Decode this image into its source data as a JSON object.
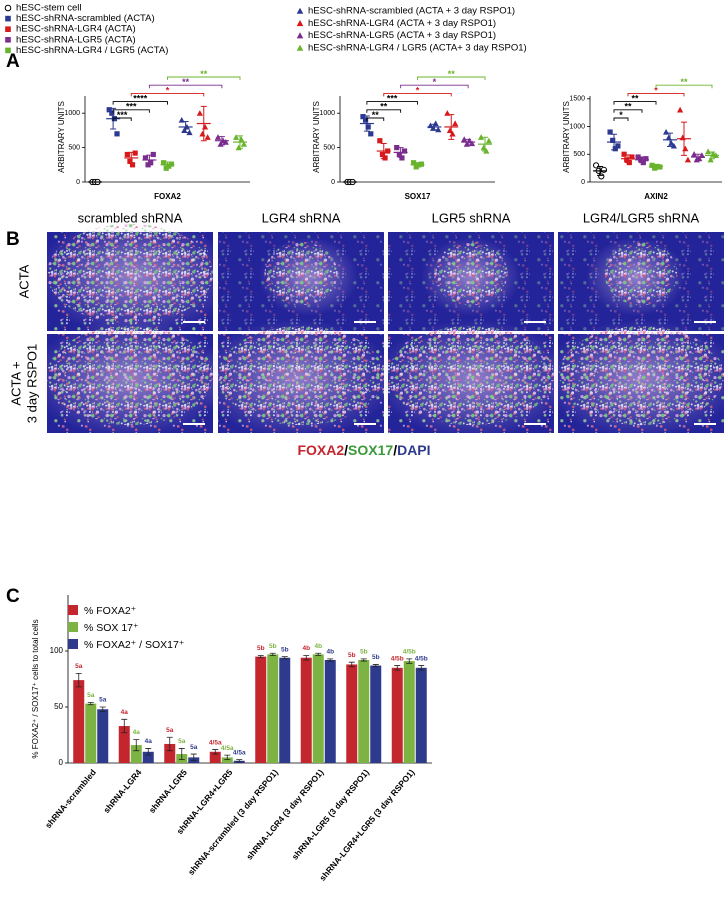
{
  "panel_labels": [
    "A",
    "B",
    "C"
  ],
  "legend": [
    {
      "name": "hESC-stem cell",
      "color": "#000000",
      "marker": "open-circle"
    },
    {
      "name": "hESC-shRNA-scrambled (ACTA)",
      "color": "#2b3990",
      "marker": "square"
    },
    {
      "name": "hESC-shRNA-LGR4 (ACTA)",
      "color": "#d7191c",
      "marker": "square"
    },
    {
      "name": "hESC-shRNA-LGR5 (ACTA)",
      "color": "#7b2d8e",
      "marker": "square"
    },
    {
      "name": "hESC-shRNA-LGR4 / LGR5 (ACTA)",
      "color": "#6ab42d",
      "marker": "square"
    },
    {
      "name": "hESC-shRNA-scrambled (ACTA + 3 day RSPO1)",
      "color": "#2b3990",
      "marker": "triangle"
    },
    {
      "name": "hESC-shRNA-LGR4 (ACTA + 3 day RSPO1)",
      "color": "#d7191c",
      "marker": "triangle"
    },
    {
      "name": "hESC-shRNA-LGR5 (ACTA + 3 day RSPO1)",
      "color": "#7b2d8e",
      "marker": "triangle"
    },
    {
      "name": "hESC-shRNA-LGR4 / LGR5 (ACTA+ 3 day RSPO1)",
      "color": "#6ab42d",
      "marker": "triangle"
    }
  ],
  "chart_data": [
    {
      "type": "dotplot",
      "ylabel": "ARBITRARY UNITS",
      "xlabel": "FOXA2",
      "ylim": [
        0,
        1250
      ],
      "yticks": [
        0,
        500,
        1000
      ],
      "groups": [
        {
          "values": [
            0,
            0,
            0
          ],
          "mean": 0,
          "sd": 0
        },
        {
          "values": [
            1050,
            1000,
            920,
            700
          ],
          "mean": 920,
          "sd": 150
        },
        {
          "values": [
            400,
            300,
            250,
            420
          ],
          "mean": 350,
          "sd": 80
        },
        {
          "values": [
            350,
            250,
            280,
            400
          ],
          "mean": 320,
          "sd": 70
        },
        {
          "values": [
            280,
            200,
            230,
            260
          ],
          "mean": 250,
          "sd": 40
        },
        {
          "values": [
            900,
            750,
            800,
            720
          ],
          "mean": 800,
          "sd": 80
        },
        {
          "values": [
            1000,
            700,
            800,
            650
          ],
          "mean": 850,
          "sd": 250
        },
        {
          "values": [
            650,
            550,
            600,
            580
          ],
          "mean": 600,
          "sd": 60
        },
        {
          "values": [
            650,
            500,
            620,
            550
          ],
          "mean": 580,
          "sd": 90
        }
      ],
      "brackets": [
        {
          "between": [
            1,
            2
          ],
          "label": "***",
          "color": "#000000"
        },
        {
          "between": [
            1,
            3
          ],
          "label": "***",
          "color": "#000000"
        },
        {
          "between": [
            1,
            4
          ],
          "label": "****",
          "color": "#000000"
        },
        {
          "between": [
            2,
            6
          ],
          "label": "*",
          "color": "#d7191c"
        },
        {
          "between": [
            3,
            7
          ],
          "label": "**",
          "color": "#7b2d8e"
        },
        {
          "between": [
            4,
            8
          ],
          "label": "**",
          "color": "#6ab42d"
        }
      ]
    },
    {
      "type": "dotplot",
      "ylabel": "ARBITRARY UNITS",
      "xlabel": "SOX17",
      "ylim": [
        0,
        1250
      ],
      "yticks": [
        0,
        500,
        1000
      ],
      "groups": [
        {
          "values": [
            0,
            0,
            0
          ],
          "mean": 0,
          "sd": 0
        },
        {
          "values": [
            950,
            900,
            800,
            700
          ],
          "mean": 850,
          "sd": 110
        },
        {
          "values": [
            600,
            400,
            350,
            450
          ],
          "mean": 450,
          "sd": 110
        },
        {
          "values": [
            500,
            400,
            350,
            450
          ],
          "mean": 430,
          "sd": 70
        },
        {
          "values": [
            280,
            220,
            250,
            260
          ],
          "mean": 250,
          "sd": 30
        },
        {
          "values": [
            820,
            780,
            850,
            760
          ],
          "mean": 800,
          "sd": 40
        },
        {
          "values": [
            1000,
            750,
            700,
            850
          ],
          "mean": 800,
          "sd": 180
        },
        {
          "values": [
            620,
            550,
            600,
            560
          ],
          "mean": 580,
          "sd": 40
        },
        {
          "values": [
            650,
            500,
            450,
            600
          ],
          "mean": 550,
          "sd": 100
        }
      ],
      "brackets": [
        {
          "between": [
            1,
            2
          ],
          "label": "**",
          "color": "#000000"
        },
        {
          "between": [
            1,
            3
          ],
          "label": "**",
          "color": "#000000"
        },
        {
          "between": [
            1,
            4
          ],
          "label": "***",
          "color": "#000000"
        },
        {
          "between": [
            2,
            6
          ],
          "label": "*",
          "color": "#d7191c"
        },
        {
          "between": [
            3,
            7
          ],
          "label": "*",
          "color": "#7b2d8e"
        },
        {
          "between": [
            4,
            8
          ],
          "label": "**",
          "color": "#6ab42d"
        }
      ]
    },
    {
      "type": "dotplot",
      "ylabel": "ARBITRARY UNITS",
      "xlabel": "AXIN2",
      "ylim": [
        0,
        1550
      ],
      "yticks": [
        0,
        500,
        1000,
        1500
      ],
      "groups": [
        {
          "values": [
            300,
            200,
            100,
            220
          ],
          "mean": 200,
          "sd": 80
        },
        {
          "values": [
            900,
            750,
            600,
            650
          ],
          "mean": 720,
          "sd": 140
        },
        {
          "values": [
            500,
            400,
            350,
            450
          ],
          "mean": 420,
          "sd": 70
        },
        {
          "values": [
            450,
            400,
            350,
            420
          ],
          "mean": 400,
          "sd": 50
        },
        {
          "values": [
            300,
            250,
            280,
            270
          ],
          "mean": 280,
          "sd": 25
        },
        {
          "values": [
            900,
            800,
            700,
            650
          ],
          "mean": 760,
          "sd": 120
        },
        {
          "values": [
            1300,
            800,
            600,
            400
          ],
          "mean": 780,
          "sd": 300
        },
        {
          "values": [
            500,
            400,
            420,
            480
          ],
          "mean": 450,
          "sd": 50
        },
        {
          "values": [
            550,
            400,
            500,
            480
          ],
          "mean": 480,
          "sd": 60
        }
      ],
      "brackets": [
        {
          "between": [
            1,
            2
          ],
          "label": "*",
          "color": "#000000"
        },
        {
          "between": [
            1,
            3
          ],
          "label": "**",
          "color": "#000000"
        },
        {
          "between": [
            1,
            4
          ],
          "label": "**",
          "color": "#000000"
        },
        {
          "between": [
            2,
            6
          ],
          "label": "*",
          "color": "#d7191c"
        },
        {
          "between": [
            4,
            8
          ],
          "label": "**",
          "color": "#6ab42d"
        }
      ]
    },
    {
      "type": "bar",
      "ylabel": "% FOXA2⁺ / SOX17⁺ cells to total cells",
      "ylim": [
        0,
        150
      ],
      "yticks": [
        0,
        50,
        100
      ],
      "categories": [
        "shRNA-scrambled",
        "shRNA-LGR4",
        "shRNA-LGR5",
        "shRNA-LGR4+LGR5",
        "shRNA-scrambled (3 day RSPO1)",
        "shRNA-LGR4 (3 day RSPO1)",
        "shRNA-LGR5 (3 day RSPO1)",
        "shRNA-LGR4+LGR5 (3 day RSPO1)"
      ],
      "series": [
        {
          "name": "% FOXA2⁺",
          "color": "#c4262e",
          "values": [
            74,
            33,
            17,
            10,
            95,
            94,
            88,
            85
          ],
          "errors": [
            6,
            6,
            6,
            2,
            1,
            2,
            2,
            2
          ],
          "sig_labels": [
            "5a",
            "4a",
            "5a",
            "4/5a",
            "5b",
            "4b",
            "5b",
            "4/5b"
          ]
        },
        {
          "name": "% SOX 17⁺",
          "color": "#7cb342",
          "values": [
            53,
            16,
            8,
            5,
            97,
            97,
            92,
            91
          ],
          "errors": [
            1,
            5,
            5,
            2,
            1,
            1,
            1,
            2
          ],
          "sig_labels": [
            "5a",
            "4a",
            "5a",
            "4/5a",
            "5b",
            "4b",
            "5b",
            "4/5b"
          ]
        },
        {
          "name": "% FOXA2⁺ / SOX17⁺",
          "color": "#2e3a8c",
          "values": [
            48,
            10,
            5,
            2,
            94,
            92,
            87,
            85
          ],
          "errors": [
            2,
            3,
            3,
            1,
            1,
            1,
            1,
            2
          ],
          "sig_labels": [
            "5a",
            "4a",
            "5a",
            "4/5a",
            "5b",
            "4b",
            "5b",
            "4/5b"
          ]
        }
      ]
    }
  ],
  "panel_b": {
    "columns": [
      "scrambled shRNA",
      "LGR4 shRNA",
      "LGR5 shRNA",
      "LGR4/LGR5 shRNA"
    ],
    "rows": [
      [
        "ACTA"
      ],
      [
        "ACTA +",
        "3 day RSPO1"
      ]
    ],
    "caption": [
      {
        "text": "FOXA2",
        "color": "#c4262e"
      },
      {
        "text": "/",
        "color": "#000000"
      },
      {
        "text": "SOX17",
        "color": "#3a9a3a"
      },
      {
        "text": "/",
        "color": "#000000"
      },
      {
        "text": "DAPI",
        "color": "#2e3a8c"
      }
    ]
  }
}
